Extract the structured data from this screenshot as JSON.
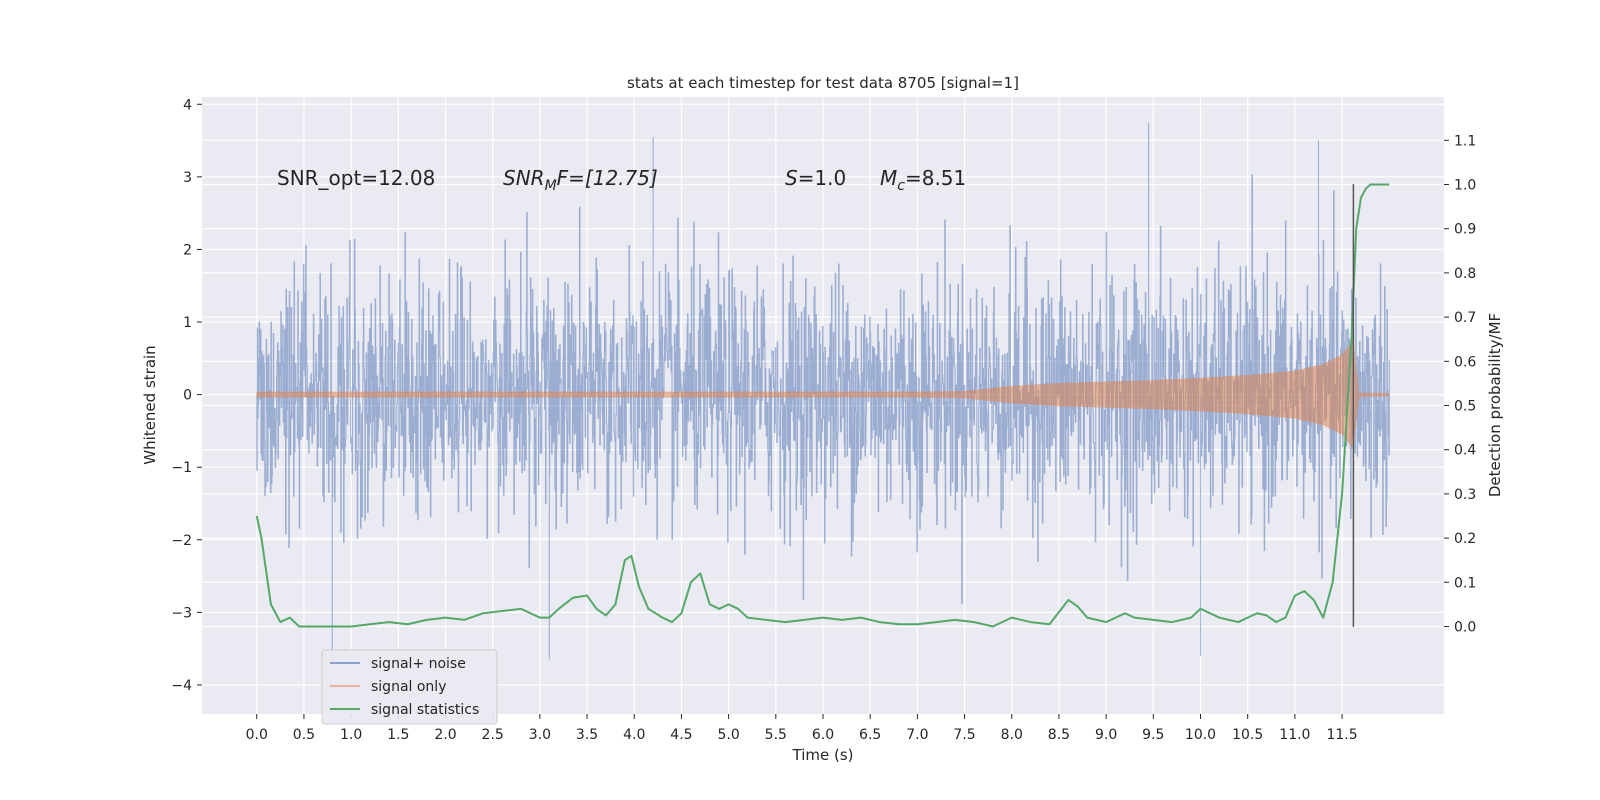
{
  "chart_data": {
    "type": "line",
    "title": "stats at each timestep for test data 8705 [signal=1]",
    "xlabel": "Time (s)",
    "ylabel_left": "Whitened strain",
    "ylabel_right": "Detection probability/MF",
    "xlim": [
      -0.58,
      12.58
    ],
    "ylim_left": [
      -4.4,
      4.1
    ],
    "ylim_right": [
      -0.198,
      1.198
    ],
    "x_ticks": [
      "0.0",
      "0.5",
      "1.0",
      "1.5",
      "2.0",
      "2.5",
      "3.0",
      "3.5",
      "4.0",
      "4.5",
      "5.0",
      "5.5",
      "6.0",
      "6.5",
      "7.0",
      "7.5",
      "8.0",
      "8.5",
      "9.0",
      "9.5",
      "10.0",
      "10.5",
      "11.0",
      "11.5"
    ],
    "y_ticks_left": [
      "−4",
      "−3",
      "−2",
      "−1",
      "0",
      "1",
      "2",
      "3",
      "4"
    ],
    "y_ticks_right": [
      "0.0",
      "0.1",
      "0.2",
      "0.3",
      "0.4",
      "0.5",
      "0.6",
      "0.7",
      "0.8",
      "0.9",
      "1.0",
      "1.1"
    ],
    "grid": true,
    "legend_position": "lower-left",
    "colors": {
      "background": "#eaeaf2",
      "noise": "#4c72b0",
      "signal": "#dd8452",
      "stats": "#55a868",
      "marker": "#555555"
    },
    "annotations": {
      "snr_opt": "SNR_opt=12.08",
      "snr_mf_name": "SNR",
      "snr_mf_sub": "M",
      "snr_mf_rest": "F=[12.75]",
      "s_name": "S",
      "s_rest": "=1.0",
      "mc_name": "M",
      "mc_sub": "c",
      "mc_rest": "=8.51"
    },
    "series": [
      {
        "name": "signal+ noise",
        "x_range": [
          0.0,
          12.0
        ],
        "envelope_typical": [
          -1.6,
          1.6
        ],
        "envelope_max": [
          -3.7,
          3.75
        ],
        "notable_peaks": [
          {
            "x": 4.2,
            "y": 3.55
          },
          {
            "x": 9.45,
            "y": 3.75
          },
          {
            "x": 0.8,
            "y": -3.7
          },
          {
            "x": 3.1,
            "y": -3.65
          },
          {
            "x": 10.0,
            "y": -3.6
          },
          {
            "x": 11.25,
            "y": 3.5
          }
        ]
      },
      {
        "name": "signal only",
        "envelope": {
          "x": [
            0.0,
            7.0,
            7.5,
            8.0,
            8.5,
            9.0,
            9.5,
            10.0,
            10.5,
            11.0,
            11.3,
            11.5,
            11.62,
            11.68,
            12.0
          ],
          "amp": [
            0.04,
            0.04,
            0.05,
            0.12,
            0.16,
            0.18,
            0.2,
            0.23,
            0.27,
            0.33,
            0.42,
            0.55,
            0.75,
            0.03,
            0.02
          ]
        }
      },
      {
        "name": "signal statistics",
        "x": [
          0.0,
          0.05,
          0.15,
          0.25,
          0.35,
          0.45,
          0.6,
          0.8,
          1.0,
          1.2,
          1.4,
          1.6,
          1.8,
          2.0,
          2.2,
          2.4,
          2.6,
          2.8,
          3.0,
          3.1,
          3.2,
          3.35,
          3.5,
          3.6,
          3.7,
          3.8,
          3.9,
          3.97,
          4.05,
          4.15,
          4.3,
          4.4,
          4.5,
          4.6,
          4.7,
          4.8,
          4.9,
          5.0,
          5.1,
          5.2,
          5.4,
          5.6,
          5.8,
          6.0,
          6.2,
          6.4,
          6.6,
          6.8,
          7.0,
          7.2,
          7.4,
          7.6,
          7.8,
          8.0,
          8.2,
          8.4,
          8.6,
          8.7,
          8.8,
          9.0,
          9.2,
          9.3,
          9.5,
          9.7,
          9.9,
          10.0,
          10.2,
          10.4,
          10.6,
          10.7,
          10.8,
          10.9,
          11.0,
          11.1,
          11.2,
          11.3,
          11.4,
          11.5,
          11.6,
          11.65,
          11.7,
          11.75,
          11.8,
          11.9,
          12.0
        ],
        "y": [
          0.25,
          0.2,
          0.05,
          0.01,
          0.02,
          0.0,
          0.0,
          0.0,
          0.0,
          0.005,
          0.01,
          0.005,
          0.015,
          0.02,
          0.015,
          0.03,
          0.035,
          0.04,
          0.02,
          0.02,
          0.04,
          0.065,
          0.07,
          0.04,
          0.025,
          0.05,
          0.15,
          0.16,
          0.09,
          0.04,
          0.02,
          0.01,
          0.03,
          0.1,
          0.12,
          0.05,
          0.04,
          0.05,
          0.04,
          0.02,
          0.015,
          0.01,
          0.015,
          0.02,
          0.015,
          0.02,
          0.01,
          0.005,
          0.005,
          0.01,
          0.015,
          0.01,
          0.0,
          0.02,
          0.01,
          0.005,
          0.06,
          0.045,
          0.02,
          0.01,
          0.03,
          0.02,
          0.015,
          0.01,
          0.02,
          0.04,
          0.02,
          0.01,
          0.03,
          0.025,
          0.01,
          0.02,
          0.07,
          0.08,
          0.06,
          0.02,
          0.1,
          0.3,
          0.65,
          0.9,
          0.97,
          0.99,
          1.0,
          1.0,
          1.0
        ]
      }
    ],
    "vertical_marker": {
      "x": 11.62,
      "y_from": -3.2,
      "y_to": 2.9
    }
  }
}
